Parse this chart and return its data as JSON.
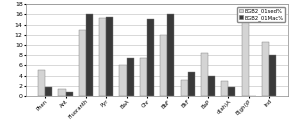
{
  "categories": [
    "Phen",
    "Ant",
    "Fluoranth",
    "Pyr",
    "BaA",
    "Chr",
    "BbF",
    "BkF",
    "BaP",
    "d(ah)A",
    "B(ghi)P",
    "Ind"
  ],
  "sed_values": [
    5.0,
    1.3,
    13.0,
    15.3,
    6.0,
    7.5,
    12.0,
    3.2,
    8.5,
    3.0,
    16.0,
    10.5
  ],
  "mac_values": [
    1.7,
    0.8,
    16.0,
    15.5,
    7.5,
    15.0,
    16.0,
    4.7,
    4.0,
    1.7,
    0.0,
    8.0
  ],
  "sed_color": "#d4d4d4",
  "mac_color": "#3a3a3a",
  "legend_sed": "EGB2_01sed%",
  "legend_mac": "EGB2_01Mac%",
  "ylim": [
    0,
    18
  ],
  "yticks": [
    0,
    2,
    4,
    6,
    8,
    10,
    12,
    14,
    16,
    18
  ],
  "bar_width": 0.35,
  "background_color": "#ffffff"
}
